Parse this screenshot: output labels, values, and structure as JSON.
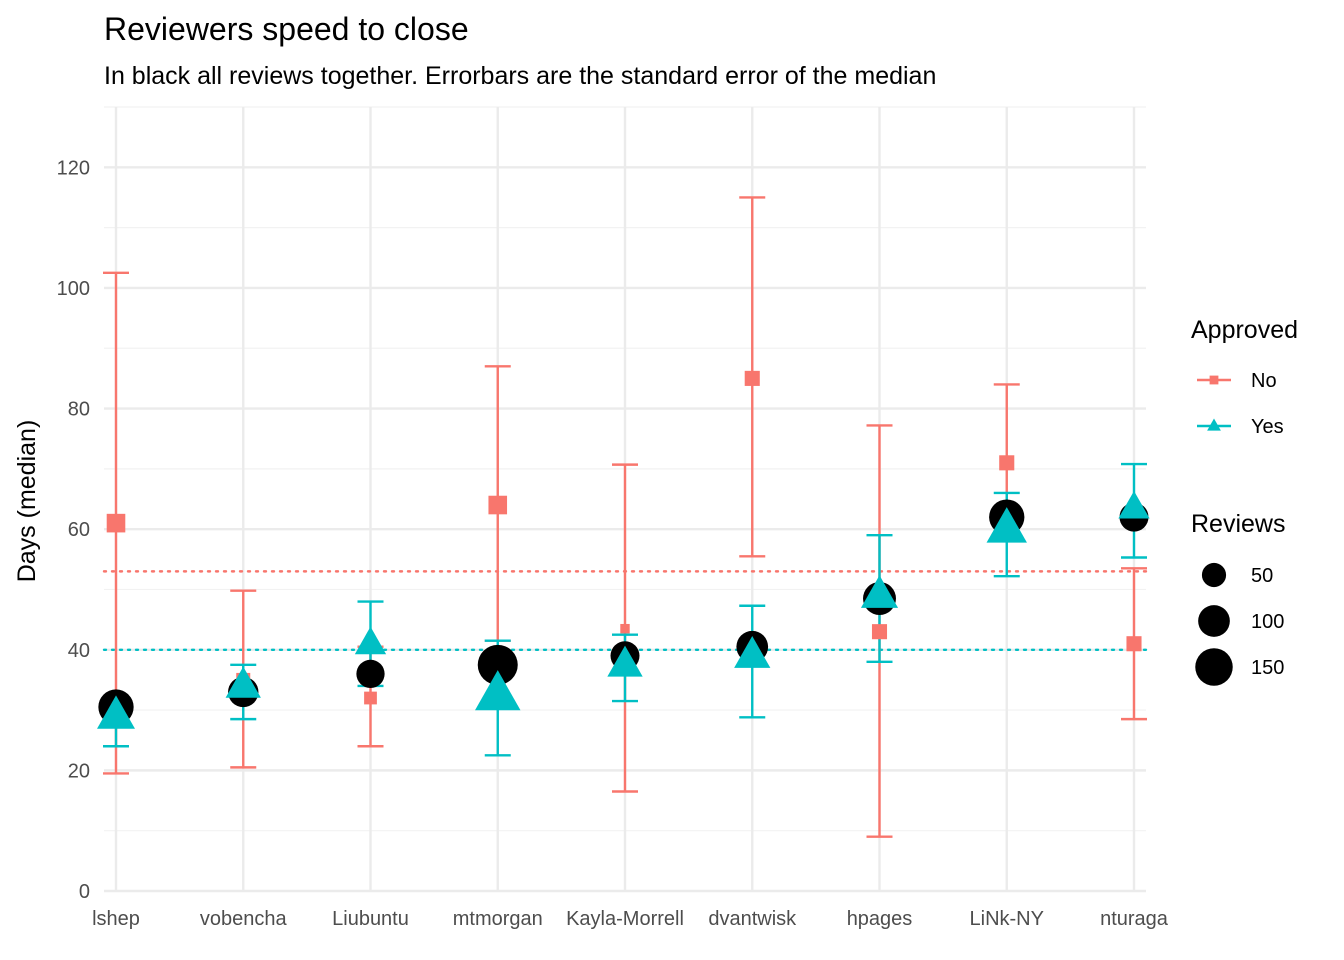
{
  "chart_data": {
    "type": "scatter",
    "title": "Reviewers speed to close",
    "subtitle": "In black all reviews together. Errorbars are the standard error of the median",
    "xlabel": "",
    "ylabel": "Days (median)",
    "ylim": [
      0,
      130
    ],
    "yticks": [
      0,
      20,
      40,
      60,
      80,
      100,
      120
    ],
    "grid": true,
    "legend_position": "right",
    "categories": [
      "lshep",
      "vobencha",
      "Liubuntu",
      "mtmorgan",
      "Kayla-Morrell",
      "dvantwisk",
      "hpages",
      "LiNk-NY",
      "nturaga"
    ],
    "overall": {
      "color": "#000000",
      "values": [
        30.5,
        33,
        36,
        37.5,
        39,
        40.5,
        48.5,
        62,
        62
      ],
      "reviews": [
        130,
        90,
        75,
        175,
        80,
        100,
        110,
        130,
        80
      ]
    },
    "series": [
      {
        "name": "No",
        "color": "#F8766D",
        "marker": "square",
        "values": [
          61,
          35,
          32,
          64,
          43.5,
          85,
          43,
          71,
          41
        ],
        "err_low": [
          19.5,
          20.5,
          24,
          41.5,
          16.5,
          55.5,
          9,
          58.5,
          28.5
        ],
        "err_high": [
          102.5,
          49.8,
          40.5,
          87,
          70.7,
          115,
          77.2,
          84,
          53.5
        ],
        "reviews": [
          45,
          20,
          15,
          45,
          5,
          25,
          25,
          25,
          25
        ]
      },
      {
        "name": "Yes",
        "color": "#00BFC4",
        "marker": "triangle",
        "values": [
          29,
          34,
          41,
          32.5,
          37.5,
          39,
          49,
          60,
          63.5
        ],
        "err_low": [
          24,
          28.5,
          34,
          22.5,
          31.5,
          28.8,
          38,
          52.2,
          55.3
        ],
        "err_high": [
          32,
          37.5,
          48,
          41.5,
          42.5,
          47.3,
          59,
          66,
          70.8
        ],
        "reviews": [
          90,
          75,
          55,
          140,
          75,
          80,
          85,
          105,
          55
        ]
      }
    ],
    "reference_lines": [
      {
        "series": "No",
        "y": 53,
        "style": "dotted",
        "color": "#F8766D"
      },
      {
        "series": "Yes",
        "y": 40,
        "style": "dotted",
        "color": "#00BFC4"
      }
    ],
    "legend": {
      "color_title": "Approved",
      "color_items": [
        {
          "label": "No",
          "color": "#F8766D",
          "marker": "square"
        },
        {
          "label": "Yes",
          "color": "#00BFC4",
          "marker": "triangle"
        }
      ],
      "size_title": "Reviews",
      "size_items": [
        {
          "label": "50",
          "value": 50
        },
        {
          "label": "100",
          "value": 100
        },
        {
          "label": "150",
          "value": 150
        }
      ]
    }
  }
}
